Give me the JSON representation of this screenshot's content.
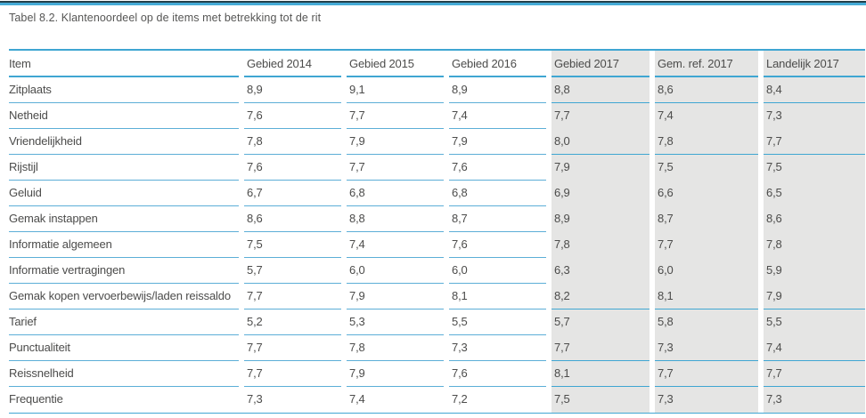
{
  "title": "Tabel 8.2. Klantenoordeel op de items met betrekking tot de rit",
  "colors": {
    "accent_line": "#3fa6d2",
    "row_line": "#5caed7",
    "highlight_column_bg": "#e5e5e4",
    "top_bar_dark": "#24404a",
    "top_bar_cyan": "#45aad6",
    "text": "#4c4c4b"
  },
  "table": {
    "columns": [
      {
        "label": "Item",
        "highlight": false
      },
      {
        "label": "Gebied 2014",
        "highlight": false
      },
      {
        "label": "Gebied 2015",
        "highlight": false
      },
      {
        "label": "Gebied 2016",
        "highlight": false
      },
      {
        "label": "Gebied 2017",
        "highlight": true
      },
      {
        "label": "Gem. ref. 2017",
        "highlight": true
      },
      {
        "label": "Landelijk 2017",
        "highlight": true
      }
    ],
    "rows": [
      {
        "item": "Zitplaats",
        "values": [
          "8,9",
          "9,1",
          "8,9",
          "8,8",
          "8,6",
          "8,4"
        ],
        "highlight_divider": true
      },
      {
        "item": "Netheid",
        "values": [
          "7,6",
          "7,7",
          "7,4",
          "7,7",
          "7,4",
          "7,3"
        ],
        "highlight_divider": false
      },
      {
        "item": "Vriendelijkheid",
        "values": [
          "7,8",
          "7,9",
          "7,9",
          "8,0",
          "7,8",
          "7,7"
        ],
        "highlight_divider": true
      },
      {
        "item": "Rijstijl",
        "values": [
          "7,6",
          "7,7",
          "7,6",
          "7,9",
          "7,5",
          "7,5"
        ],
        "highlight_divider": false
      },
      {
        "item": "Geluid",
        "values": [
          "6,7",
          "6,8",
          "6,8",
          "6,9",
          "6,6",
          "6,5"
        ],
        "highlight_divider": false
      },
      {
        "item": "Gemak instappen",
        "values": [
          "8,6",
          "8,8",
          "8,7",
          "8,9",
          "8,7",
          "8,6"
        ],
        "highlight_divider": false
      },
      {
        "item": "Informatie algemeen",
        "values": [
          "7,5",
          "7,4",
          "7,6",
          "7,8",
          "7,7",
          "7,8"
        ],
        "highlight_divider": false
      },
      {
        "item": "Informatie vertragingen",
        "values": [
          "5,7",
          "6,0",
          "6,0",
          "6,3",
          "6,0",
          "5,9"
        ],
        "highlight_divider": false
      },
      {
        "item": "Gemak kopen vervoerbewijs/laden reissaldo",
        "values": [
          "7,7",
          "7,9",
          "8,1",
          "8,2",
          "8,1",
          "7,9"
        ],
        "highlight_divider": true
      },
      {
        "item": "Tarief",
        "values": [
          "5,2",
          "5,3",
          "5,5",
          "5,7",
          "5,8",
          "5,5"
        ],
        "highlight_divider": false
      },
      {
        "item": "Punctualiteit",
        "values": [
          "7,7",
          "7,8",
          "7,3",
          "7,7",
          "7,3",
          "7,4"
        ],
        "highlight_divider": true
      },
      {
        "item": "Reissnelheid",
        "values": [
          "7,7",
          "7,9",
          "7,6",
          "8,1",
          "7,7",
          "7,7"
        ],
        "highlight_divider": true
      },
      {
        "item": "Frequentie",
        "values": [
          "7,3",
          "7,4",
          "7,2",
          "7,5",
          "7,3",
          "7,3"
        ],
        "highlight_divider": true
      }
    ]
  }
}
